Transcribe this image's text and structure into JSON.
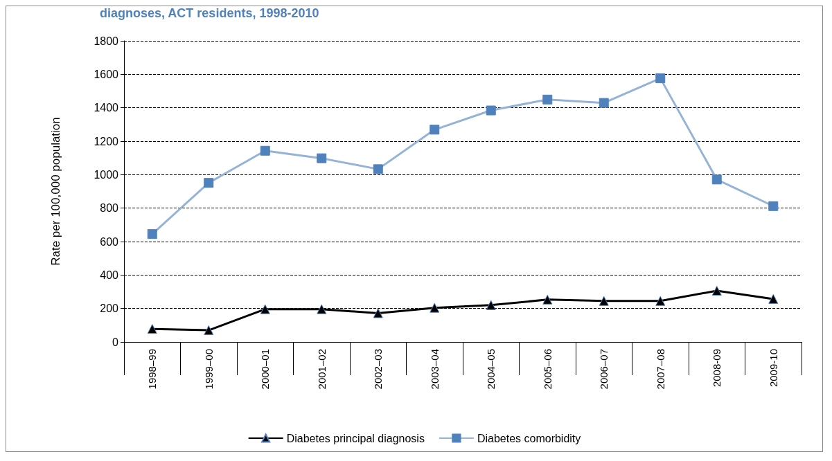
{
  "chart_data": {
    "type": "line",
    "title": "diagnoses, ACT residents, 1998-2010",
    "ylabel": "Rate per 100,000 population",
    "categories": [
      "1998–99",
      "1999–00",
      "2000–01",
      "2001–02",
      "2002–03",
      "2003–04",
      "2004–05",
      "2005–06",
      "2006–07",
      "2007–08",
      "2008-09",
      "2009-10"
    ],
    "series": [
      {
        "name": "Diabetes principal diagnosis",
        "color": "#000000",
        "marker": "triangle",
        "values": [
          78,
          70,
          196,
          196,
          172,
          204,
          220,
          253,
          245,
          245,
          306,
          257
        ]
      },
      {
        "name": "Diabetes comorbidity",
        "color": "#95b3d7",
        "marker": "square",
        "values": [
          645,
          951,
          1143,
          1098,
          1033,
          1269,
          1384,
          1449,
          1429,
          1576,
          971,
          812
        ]
      }
    ],
    "ylim": [
      0,
      1800
    ],
    "yticks": [
      0,
      200,
      400,
      600,
      800,
      1000,
      1200,
      1400,
      1600,
      1800
    ],
    "grid": "y",
    "legend": "bottom",
    "line_style": "solid"
  }
}
